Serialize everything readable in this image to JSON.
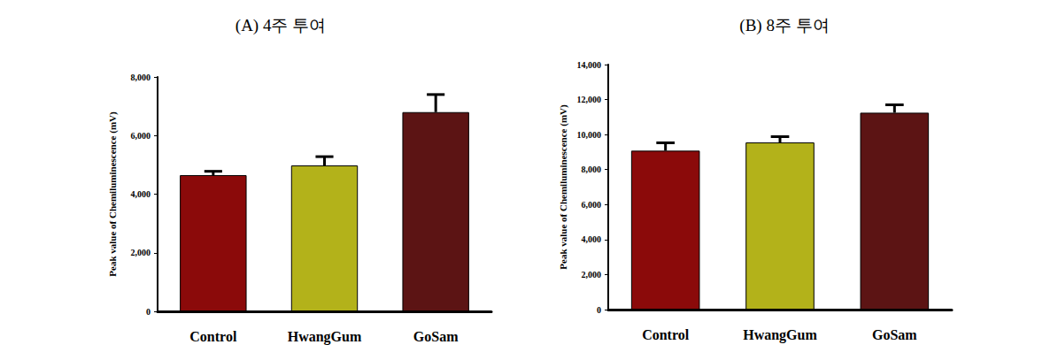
{
  "chart_data": [
    {
      "type": "bar",
      "title": "(A) 4주 투여",
      "y_label": "Peak value of Chemiluminescence (mV)",
      "categories": [
        "Control",
        "HwangGum",
        "GoSam"
      ],
      "values": [
        4650,
        4980,
        6800
      ],
      "errors": [
        130,
        300,
        600
      ],
      "colors": [
        "#8b0a0a",
        "#b3b21a",
        "#5c1414"
      ],
      "ylim": [
        0,
        8000
      ],
      "yticks": [
        0,
        2000,
        4000,
        6000,
        8000
      ],
      "grid": false
    },
    {
      "type": "bar",
      "title": "(B) 8주 투여",
      "y_label": "Peak value of Chemiluminescence (mV)",
      "categories": [
        "Control",
        "HwangGum",
        "GoSam"
      ],
      "values": [
        9080,
        9550,
        11250
      ],
      "errors": [
        450,
        330,
        450
      ],
      "colors": [
        "#8b0a0a",
        "#b3b21a",
        "#5c1414"
      ],
      "ylim": [
        0,
        14000
      ],
      "yticks": [
        0,
        2000,
        4000,
        6000,
        8000,
        10000,
        12000,
        14000
      ],
      "grid": false
    }
  ]
}
